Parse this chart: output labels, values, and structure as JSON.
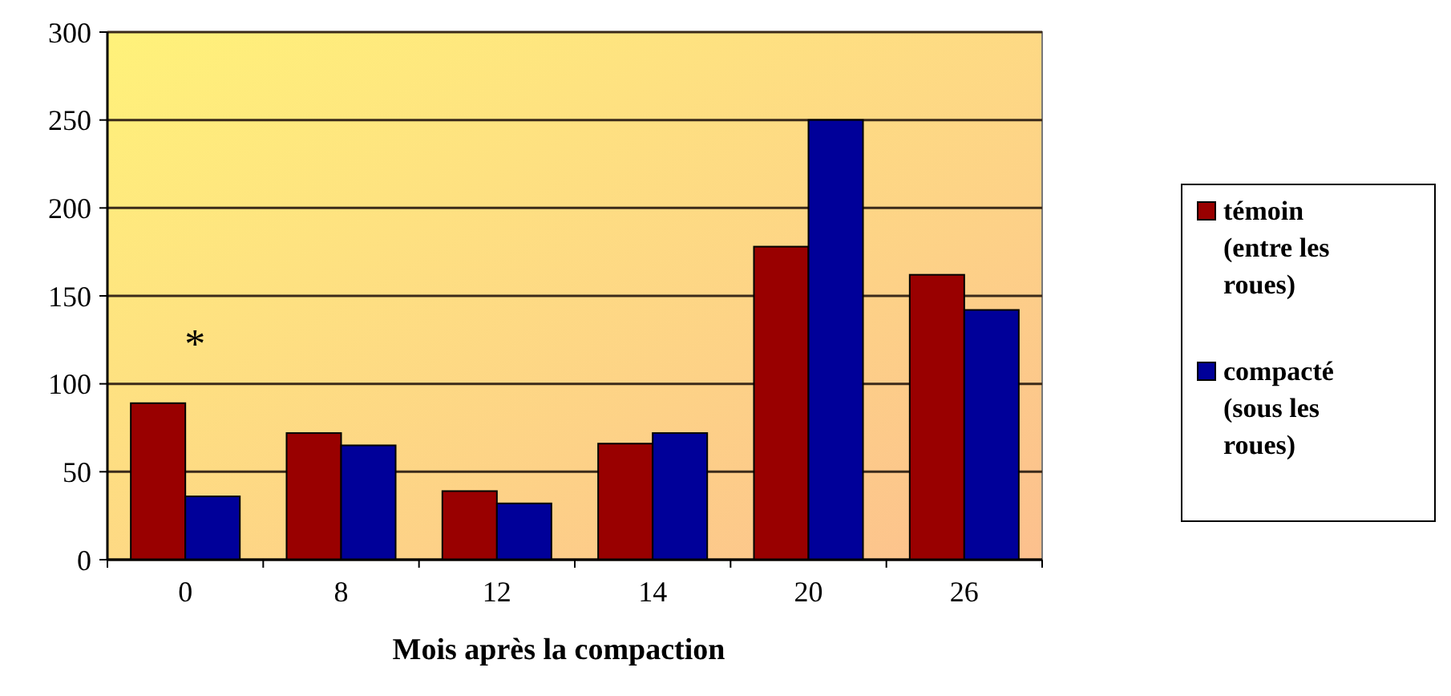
{
  "chart_data": {
    "type": "bar",
    "xlabel": "Mois après la compaction",
    "categories": [
      "0",
      "8",
      "12",
      "14",
      "20",
      "26"
    ],
    "series": [
      {
        "name": "témoin (entre les roues)",
        "color": "#990000",
        "values": [
          89,
          72,
          39,
          66,
          178,
          162
        ]
      },
      {
        "name": "compacté (sous les roues)",
        "color": "#000099",
        "values": [
          36,
          65,
          32,
          72,
          250,
          142
        ]
      }
    ],
    "ylim": [
      0,
      300
    ],
    "yticks": [
      0,
      50,
      100,
      150,
      200,
      250,
      300
    ],
    "grid": "y",
    "legend": "right",
    "annotations": [
      "*"
    ]
  }
}
